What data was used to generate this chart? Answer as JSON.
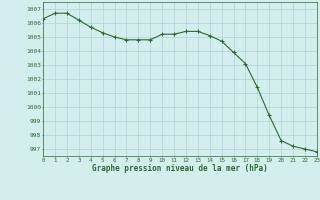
{
  "x": [
    0,
    1,
    2,
    3,
    4,
    5,
    6,
    7,
    8,
    9,
    10,
    11,
    12,
    13,
    14,
    15,
    16,
    17,
    18,
    19,
    20,
    21,
    22,
    23
  ],
  "y": [
    1006.3,
    1006.7,
    1006.7,
    1006.2,
    1005.7,
    1005.3,
    1005.0,
    1004.8,
    1004.8,
    1004.8,
    1005.2,
    1005.2,
    1005.4,
    1005.4,
    1005.1,
    1004.7,
    1003.9,
    1003.1,
    1001.4,
    999.4,
    997.6,
    997.2,
    997.0,
    996.8
  ],
  "line_color": "#2d6b2d",
  "marker_color": "#2d6b2d",
  "bg_color": "#d4eeee",
  "grid_color": "#b0d4d4",
  "xlabel": "Graphe pression niveau de la mer (hPa)",
  "yticks": [
    997,
    998,
    999,
    1000,
    1001,
    1002,
    1003,
    1004,
    1005,
    1006,
    1007
  ],
  "xticks": [
    0,
    1,
    2,
    3,
    4,
    5,
    6,
    7,
    8,
    9,
    10,
    11,
    12,
    13,
    14,
    15,
    16,
    17,
    18,
    19,
    20,
    21,
    22,
    23
  ],
  "xlim": [
    0,
    23
  ],
  "ylim": [
    996.5,
    1007.5
  ]
}
